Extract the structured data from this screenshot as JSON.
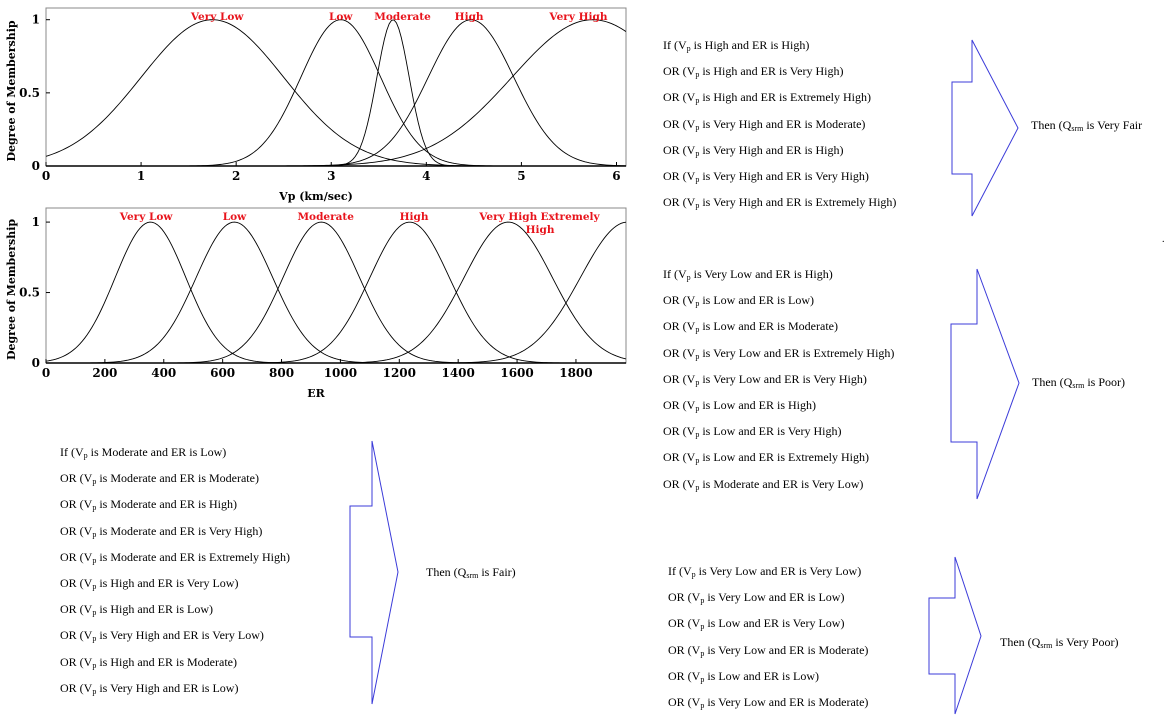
{
  "colors": {
    "label_red": "#e8141c",
    "arrow_blue": "#3b3bd9",
    "curve": "#000000"
  },
  "chart_data": [
    {
      "type": "line",
      "title": "",
      "xlabel": "Vp (km/sec)",
      "ylabel": "Degree of Membership",
      "xlim": [
        0,
        6.1
      ],
      "ylim": [
        0,
        1.08
      ],
      "x_ticks": [
        "0",
        "1",
        "2",
        "3",
        "4",
        "5",
        "6"
      ],
      "y_ticks": [
        "0",
        "0.5",
        "1"
      ],
      "grid": false,
      "series": [
        {
          "name": "Very Low",
          "center": 1.75,
          "sigma": 0.75,
          "label_at": 1.8
        },
        {
          "name": "Low",
          "center": 3.1,
          "sigma": 0.42,
          "label_at": 3.1
        },
        {
          "name": "Moderate",
          "center": 3.65,
          "sigma": 0.17,
          "label_at": 3.75
        },
        {
          "name": "High",
          "center": 4.47,
          "sigma": 0.45,
          "label_at": 4.45
        },
        {
          "name": "Very High",
          "center": 5.75,
          "sigma": 0.85,
          "label_at": 5.6
        }
      ]
    },
    {
      "type": "line",
      "title": "",
      "xlabel": "ER",
      "ylabel": "Degree of Membership",
      "xlim": [
        0,
        1970
      ],
      "ylim": [
        0,
        1.1
      ],
      "x_ticks": [
        "0",
        "200",
        "400",
        "600",
        "800",
        "1000",
        "1200",
        "1400",
        "1600",
        "1800"
      ],
      "y_ticks": [
        "0",
        "0.5",
        "1"
      ],
      "grid": false,
      "series": [
        {
          "name": "Very Low",
          "center": 355,
          "sigma": 120,
          "label_at": 340
        },
        {
          "name": "Low",
          "center": 640,
          "sigma": 130,
          "label_at": 640
        },
        {
          "name": "Moderate",
          "center": 935,
          "sigma": 130,
          "label_at": 950
        },
        {
          "name": "High",
          "center": 1235,
          "sigma": 135,
          "label_at": 1250
        },
        {
          "name": "Very High",
          "center": 1570,
          "sigma": 150,
          "label_at": 1570
        },
        {
          "name": "Extremely High",
          "center": 1975,
          "sigma": 160,
          "label_at": 1780
        }
      ]
    }
  ],
  "rule_groups": [
    {
      "id": "very-fair",
      "rules": [
        {
          "pre": "If (V",
          "sub": "p",
          "post": " is High and ER is High)"
        },
        {
          "pre": "OR (V",
          "sub": "p",
          "post": " is High and ER is Very High)"
        },
        {
          "pre": "OR (V",
          "sub": "p",
          "post": " is High and ER is Extremely High)"
        },
        {
          "pre": "OR (V",
          "sub": "p",
          "post": " is Very High and ER is Moderate)"
        },
        {
          "pre": "OR (V",
          "sub": "p",
          "post": " is Very High and ER is High)"
        },
        {
          "pre": "OR (V",
          "sub": "p",
          "post": " is Very High and ER is Very High)"
        },
        {
          "pre": "OR (V",
          "sub": "p",
          "post": " is Very High and ER is Extremely High)"
        }
      ],
      "conclusion": {
        "pre": "Then (Q",
        "sub": "srm",
        "post": " is Very Fair"
      }
    },
    {
      "id": "poor",
      "rules": [
        {
          "pre": "If (V",
          "sub": "p",
          "post": " is Very Low and ER is High)"
        },
        {
          "pre": "OR (V",
          "sub": "p",
          "post": " is Low and ER is Low)"
        },
        {
          "pre": "OR (V",
          "sub": "p",
          "post": " is Low and ER is Moderate)"
        },
        {
          "pre": "OR (V",
          "sub": "p",
          "post": " is Very Low and ER is Extremely High)"
        },
        {
          "pre": "OR (V",
          "sub": "p",
          "post": " is Very Low and ER is Very High)"
        },
        {
          "pre": "OR (V",
          "sub": "p",
          "post": " is Low and ER is High)"
        },
        {
          "pre": "OR (V",
          "sub": "p",
          "post": " is Low and ER is Very High)"
        },
        {
          "pre": "OR (V",
          "sub": "p",
          "post": " is Low and ER is Extremely High)"
        },
        {
          "pre": "OR (V",
          "sub": "p",
          "post": " is Moderate and ER is Very Low)"
        }
      ],
      "conclusion": {
        "pre": "Then (Q",
        "sub": "srm",
        "post": " is Poor)"
      }
    },
    {
      "id": "fair",
      "rules": [
        {
          "pre": "If (V",
          "sub": "p",
          "post": " is Moderate and ER is Low)"
        },
        {
          "pre": "OR (V",
          "sub": "p",
          "post": " is Moderate and ER is Moderate)"
        },
        {
          "pre": "OR (V",
          "sub": "p",
          "post": " is Moderate and ER is High)"
        },
        {
          "pre": "OR (V",
          "sub": "p",
          "post": " is Moderate and ER is Very High)"
        },
        {
          "pre": "OR (V",
          "sub": "p",
          "post": " is Moderate and ER is Extremely High)"
        },
        {
          "pre": "OR (V",
          "sub": "p",
          "post": " is High and ER is Very Low)"
        },
        {
          "pre": "OR (V",
          "sub": "p",
          "post": " is High and ER is Low)"
        },
        {
          "pre": "OR (V",
          "sub": "p",
          "post": " is Very High and ER is Very Low)"
        },
        {
          "pre": "OR (V",
          "sub": "p",
          "post": " is High and ER is Moderate)"
        },
        {
          "pre": "OR (V",
          "sub": "p",
          "post": " is Very High and ER is Low)"
        }
      ],
      "conclusion": {
        "pre": "Then (Q",
        "sub": "srm",
        "post": " is Fair)"
      }
    },
    {
      "id": "very-poor",
      "rules": [
        {
          "pre": "If (V",
          "sub": "p",
          "post": " is Very Low and ER is Very Low)"
        },
        {
          "pre": "OR (V",
          "sub": "p",
          "post": " is Very Low and ER is Low)"
        },
        {
          "pre": "OR (V",
          "sub": "p",
          "post": " is Low and ER is Very Low)"
        },
        {
          "pre": "OR (V",
          "sub": "p",
          "post": " is Very Low and ER is Moderate)"
        },
        {
          "pre": "OR (V",
          "sub": "p",
          "post": " is Low and ER is Low)"
        },
        {
          "pre": "OR (V",
          "sub": "p",
          "post": " is Very Low and ER is Moderate)"
        }
      ],
      "conclusion": {
        "pre": "Then (Q",
        "sub": "srm",
        "post": " is Very Poor)"
      }
    }
  ],
  "stray_mark": "."
}
